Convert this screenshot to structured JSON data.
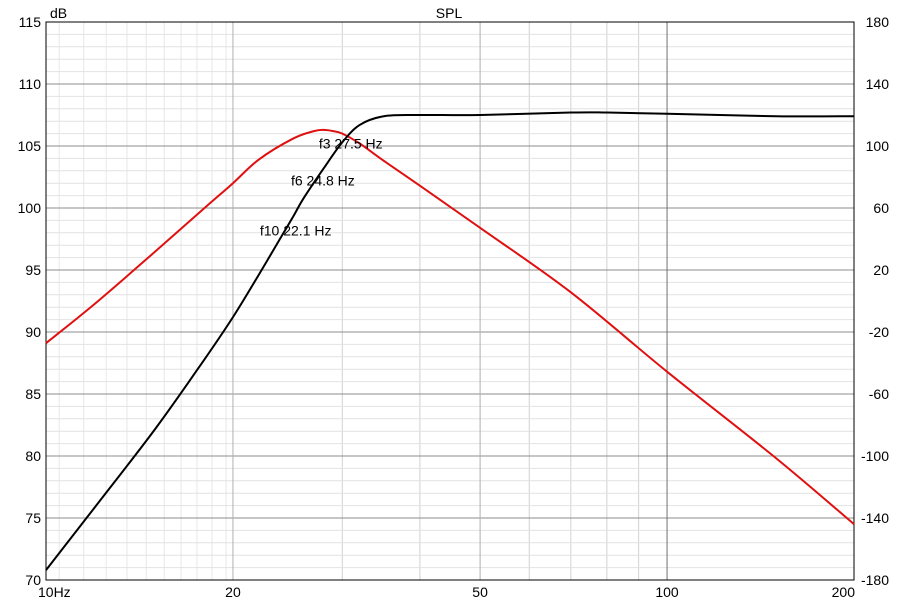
{
  "chart_data": {
    "type": "line",
    "title": "SPL",
    "ylabel": "dB",
    "xscale": "log",
    "xlim": [
      10,
      200
    ],
    "ylim": [
      70,
      115
    ],
    "y2lim": [
      -180,
      180
    ],
    "grid": true,
    "x_ticks": [
      {
        "value": 10,
        "label": "10Hz"
      },
      {
        "value": 20,
        "label": "20"
      },
      {
        "value": 50,
        "label": "50"
      },
      {
        "value": 100,
        "label": "100"
      },
      {
        "value": 200,
        "label": "200"
      }
    ],
    "y_ticks": [
      {
        "value": 70,
        "label": "70"
      },
      {
        "value": 75,
        "label": "75"
      },
      {
        "value": 80,
        "label": "80"
      },
      {
        "value": 85,
        "label": "85"
      },
      {
        "value": 90,
        "label": "90"
      },
      {
        "value": 95,
        "label": "95"
      },
      {
        "value": 100,
        "label": "100"
      },
      {
        "value": 105,
        "label": "105"
      },
      {
        "value": 110,
        "label": "110"
      },
      {
        "value": 115,
        "label": "115"
      }
    ],
    "y2_ticks": [
      {
        "value": -180,
        "label": "-180"
      },
      {
        "value": -140,
        "label": "-140"
      },
      {
        "value": -100,
        "label": "-100"
      },
      {
        "value": -60,
        "label": "-60"
      },
      {
        "value": -20,
        "label": "-20"
      },
      {
        "value": 20,
        "label": "20"
      },
      {
        "value": 60,
        "label": "60"
      },
      {
        "value": 100,
        "label": "100"
      },
      {
        "value": 140,
        "label": "140"
      },
      {
        "value": 180,
        "label": "180"
      }
    ],
    "series": [
      {
        "color": "#e01010",
        "axis": "left",
        "x": [
          10,
          12,
          15,
          18,
          20,
          22,
          25,
          27,
          28,
          29,
          30,
          32,
          35,
          40,
          50,
          70,
          100,
          150,
          200
        ],
        "y": [
          89.1,
          92.3,
          96.5,
          100.0,
          102.0,
          103.9,
          105.6,
          106.2,
          106.3,
          106.2,
          106.0,
          105.2,
          103.8,
          101.8,
          98.4,
          93.2,
          86.8,
          79.8,
          74.5
        ]
      },
      {
        "color": "#000000",
        "axis": "left",
        "x": [
          10,
          12,
          15,
          18,
          20,
          22,
          24,
          25,
          26,
          28,
          30,
          32,
          35,
          40,
          50,
          70,
          80,
          100,
          150,
          200
        ],
        "y": [
          70.8,
          75.9,
          82.2,
          87.8,
          91.2,
          94.6,
          97.8,
          99.3,
          100.8,
          103.2,
          105.3,
          106.7,
          107.4,
          107.5,
          107.5,
          107.7,
          107.7,
          107.6,
          107.4,
          107.4
        ]
      }
    ],
    "annotations": [
      {
        "text": "f3 27.5 Hz",
        "x": 27.5,
        "y": 104.8
      },
      {
        "text": "f6 24.8 Hz",
        "x": 24.8,
        "y": 101.8
      },
      {
        "text": "f10 22.1 Hz",
        "x": 22.1,
        "y": 97.8
      }
    ]
  }
}
